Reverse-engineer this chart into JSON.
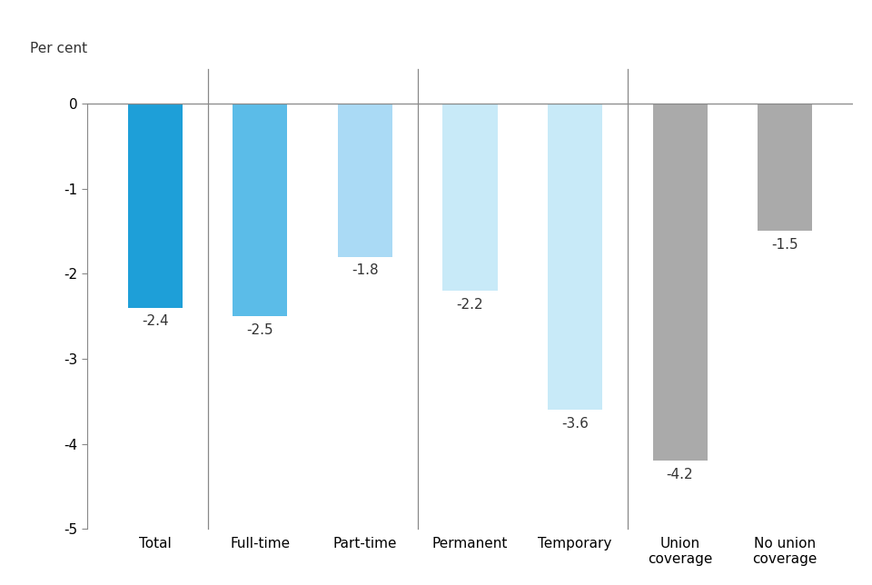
{
  "categories": [
    "Total",
    "Full-time",
    "Part-time",
    "Permanent",
    "Temporary",
    "Union\ncoverage",
    "No union\ncoverage"
  ],
  "values": [
    -2.4,
    -2.5,
    -1.8,
    -2.2,
    -3.6,
    -4.2,
    -1.5
  ],
  "bar_colors": [
    "#1E9FD8",
    "#5BBCE8",
    "#AADAF5",
    "#C8EAF8",
    "#C8EAF8",
    "#AAAAAA",
    "#AAAAAA"
  ],
  "ylabel": "Per cent",
  "ylim": [
    -5,
    0.4
  ],
  "yticks": [
    0,
    -1,
    -2,
    -3,
    -4,
    -5
  ],
  "ytick_labels": [
    "0",
    "-1",
    "-2",
    "-3",
    "-4",
    "-5"
  ],
  "label_fontsize": 11,
  "ylabel_fontsize": 11,
  "tick_fontsize": 11,
  "bar_width": 0.52,
  "separator_after_indices": [
    0,
    2,
    4
  ],
  "background_color": "#FFFFFF",
  "separator_color": "#888888",
  "spine_color": "#888888",
  "text_color": "#333333"
}
